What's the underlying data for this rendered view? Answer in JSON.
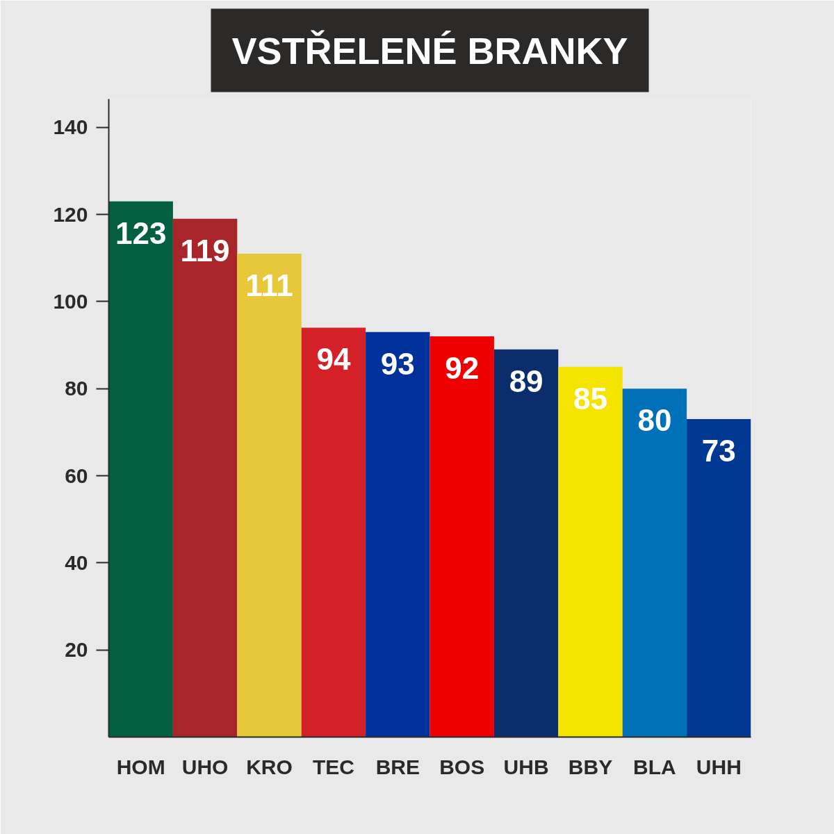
{
  "chart_data": {
    "type": "bar",
    "title": "VSTŘELENÉ BRANKY",
    "categories": [
      "HOM",
      "UHO",
      "KRO",
      "TEC",
      "BRE",
      "BOS",
      "UHB",
      "BBY",
      "BLA",
      "UHH"
    ],
    "values": [
      123,
      119,
      111,
      94,
      93,
      92,
      89,
      85,
      80,
      73
    ],
    "colors": [
      "#035f3f",
      "#a8262a",
      "#e6c83a",
      "#d42027",
      "#00309a",
      "#ee0000",
      "#0b2d6b",
      "#f5e400",
      "#0070b8",
      "#003894"
    ],
    "ylim": [
      0,
      146.5
    ],
    "yticks": [
      20,
      40,
      60,
      80,
      100,
      120,
      140
    ],
    "data_labels": true
  }
}
